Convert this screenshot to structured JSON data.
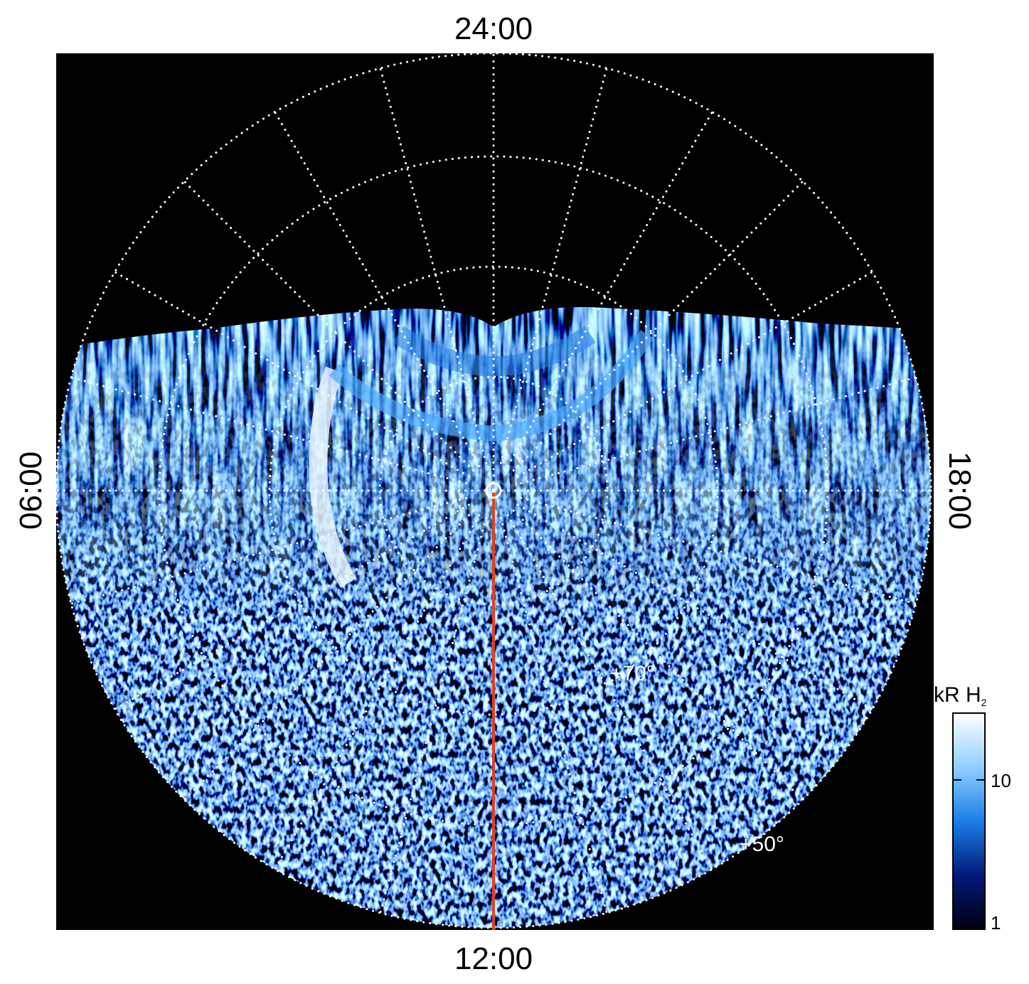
{
  "labels": {
    "top": "24:00",
    "bottom": "12:00",
    "left": "06:00",
    "right": "18:00"
  },
  "latitude_labels": [
    "+70°",
    "+50°"
  ],
  "colorbar": {
    "label": "kR H",
    "label_subscript": "2",
    "log": true,
    "lim": [
      1,
      28
    ],
    "ticks": [
      1,
      10
    ],
    "colors": [
      "#000010",
      "#001a7a",
      "#1a7fe8",
      "#8fcfff",
      "#ffffff"
    ]
  }
}
